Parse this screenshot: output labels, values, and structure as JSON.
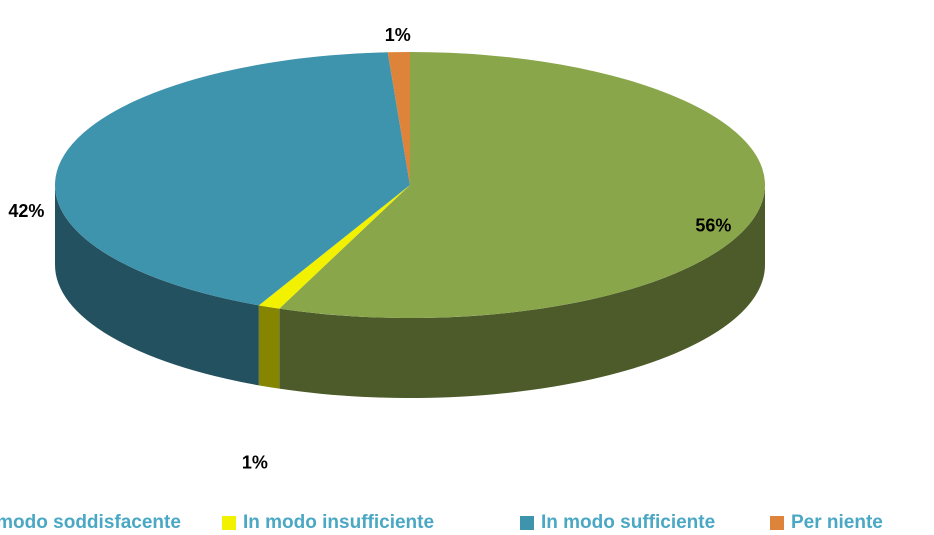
{
  "chart_data": {
    "type": "pie3d",
    "categories": [
      "In modo soddisfacente",
      "In modo insufficiente",
      "In modo sufficiente",
      "Per niente"
    ],
    "values": [
      56,
      1,
      42,
      1
    ],
    "value_labels": [
      "56%",
      "1%",
      "42%",
      "1%"
    ],
    "colors": [
      "#8aa64b",
      "#f2f200",
      "#3f94ad",
      "#dd833a"
    ],
    "legend": "bottom"
  }
}
